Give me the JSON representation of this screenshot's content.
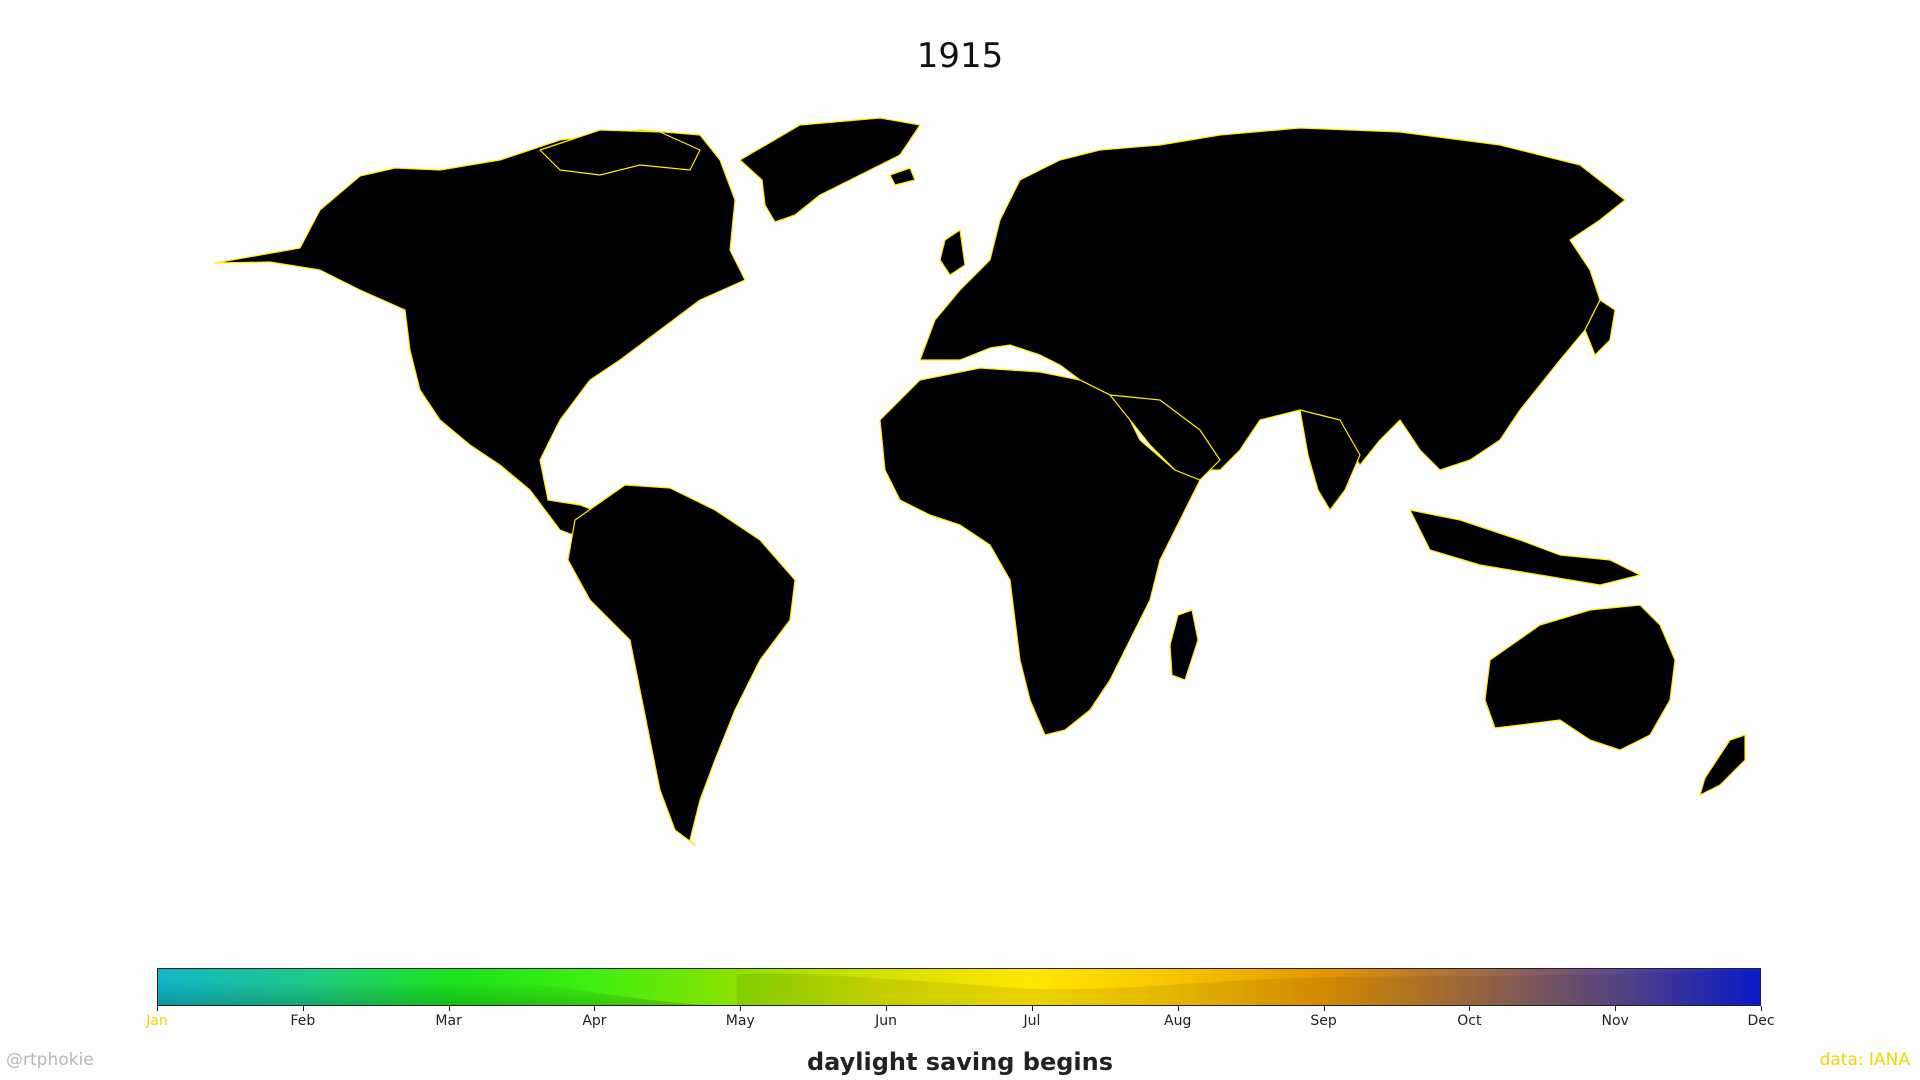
{
  "title": "1915",
  "legend": {
    "title": "daylight saving begins",
    "months": [
      "Jan",
      "Feb",
      "Mar",
      "Apr",
      "May",
      "Jun",
      "Jul",
      "Aug",
      "Sep",
      "Oct",
      "Nov",
      "Dec"
    ],
    "gradient_stops": [
      "#12b6c8",
      "#1ec98a",
      "#1be21c",
      "#3ff010",
      "#8ee000",
      "#d8e000",
      "#ffe600",
      "#f7c400",
      "#e49600",
      "#a66e40",
      "#5c4a8a",
      "#0b1cd6"
    ]
  },
  "colors": {
    "land": "#000000",
    "ocean": "#fdfdfd",
    "coast_highlight": "#ffee00"
  },
  "credit_left": "@rtphokie",
  "credit_right": "data: IANA"
}
